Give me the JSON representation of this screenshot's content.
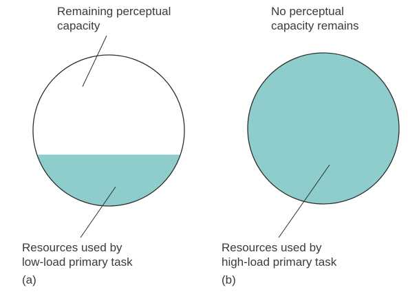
{
  "panel_a": {
    "top_label": [
      "Remaining perceptual",
      "capacity"
    ],
    "bottom_label": [
      "Resources used by",
      "low-load primary task"
    ],
    "panel_letter": "(a)",
    "fill_fraction": 0.34
  },
  "panel_b": {
    "top_label": [
      "No perceptual",
      "capacity remains"
    ],
    "bottom_label": [
      "Resources used by",
      "high-load primary task"
    ],
    "panel_letter": "(b)",
    "fill_fraction": 1.0
  },
  "colors": {
    "fill": "#8ecdcc",
    "outline": "#2b2b2b",
    "empty": "#ffffff",
    "text": "#3a3a3a",
    "leader": "#2b2b2b"
  }
}
